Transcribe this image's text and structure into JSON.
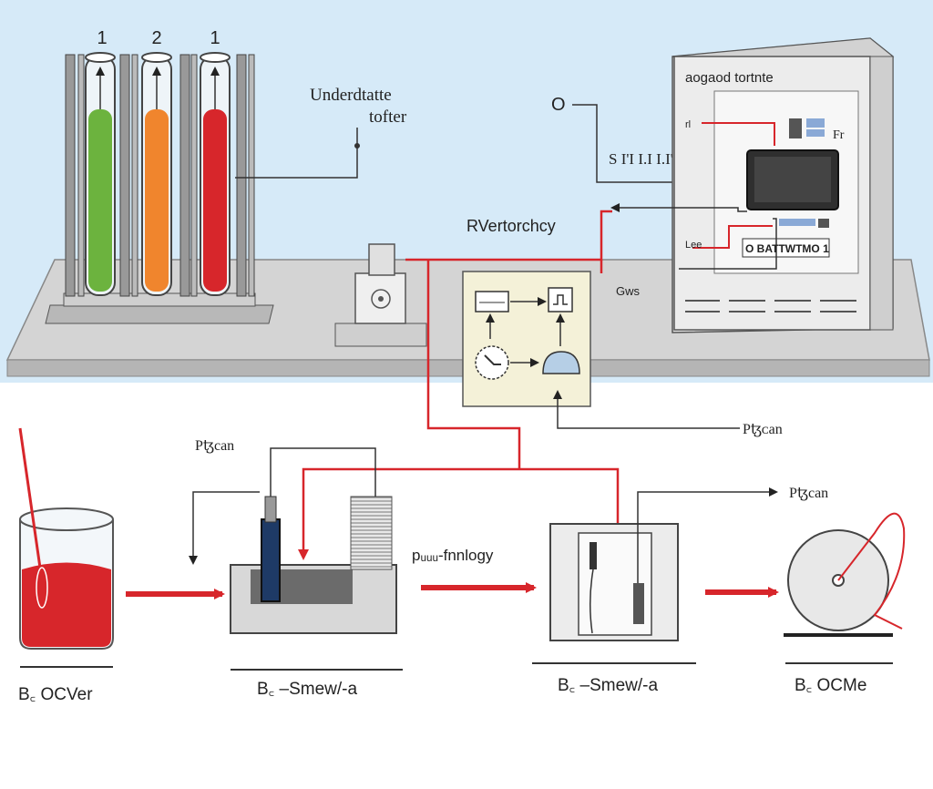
{
  "tube_numbers": [
    "1",
    "2",
    "1"
  ],
  "labels": {
    "underside_title": "Underdtatte",
    "underside_sub": "tofter",
    "circle_marker": "O",
    "s_line": "S I'I I.I I.I'progances",
    "rv_label": "RVertorchcy",
    "small_cabinet_label": "Gws",
    "flow_label_center": "Pꜩᴄan",
    "flow_label_left": "Pꜩcan",
    "flow_label_right": "Pꜩcan",
    "flow_middle": "pᵤᵤᵤ-fnnlogy",
    "cabinet_title": "aogaod tortnte",
    "cabinet_row_1": "Fr",
    "cabinet_row_2": "Lee",
    "cabinet_row_3": "rl",
    "cabinet_badge": "O BATTWTMO 1"
  },
  "stations": [
    {
      "label": "B꜀ OCVer"
    },
    {
      "label": "B꜀ –Smew/-a"
    },
    {
      "label": "B꜀ –Smew/-a"
    },
    {
      "label": "B꜀ OCMe"
    }
  ],
  "colors": {
    "sky": "#d6eaf8",
    "table": "#c9c9c9",
    "green_liquid": "#6cb33e",
    "orange_liquid": "#f0852d",
    "red_liquid": "#d7262b",
    "wire_red": "#d7262b",
    "panel_yellow": "#f4f1d8"
  }
}
